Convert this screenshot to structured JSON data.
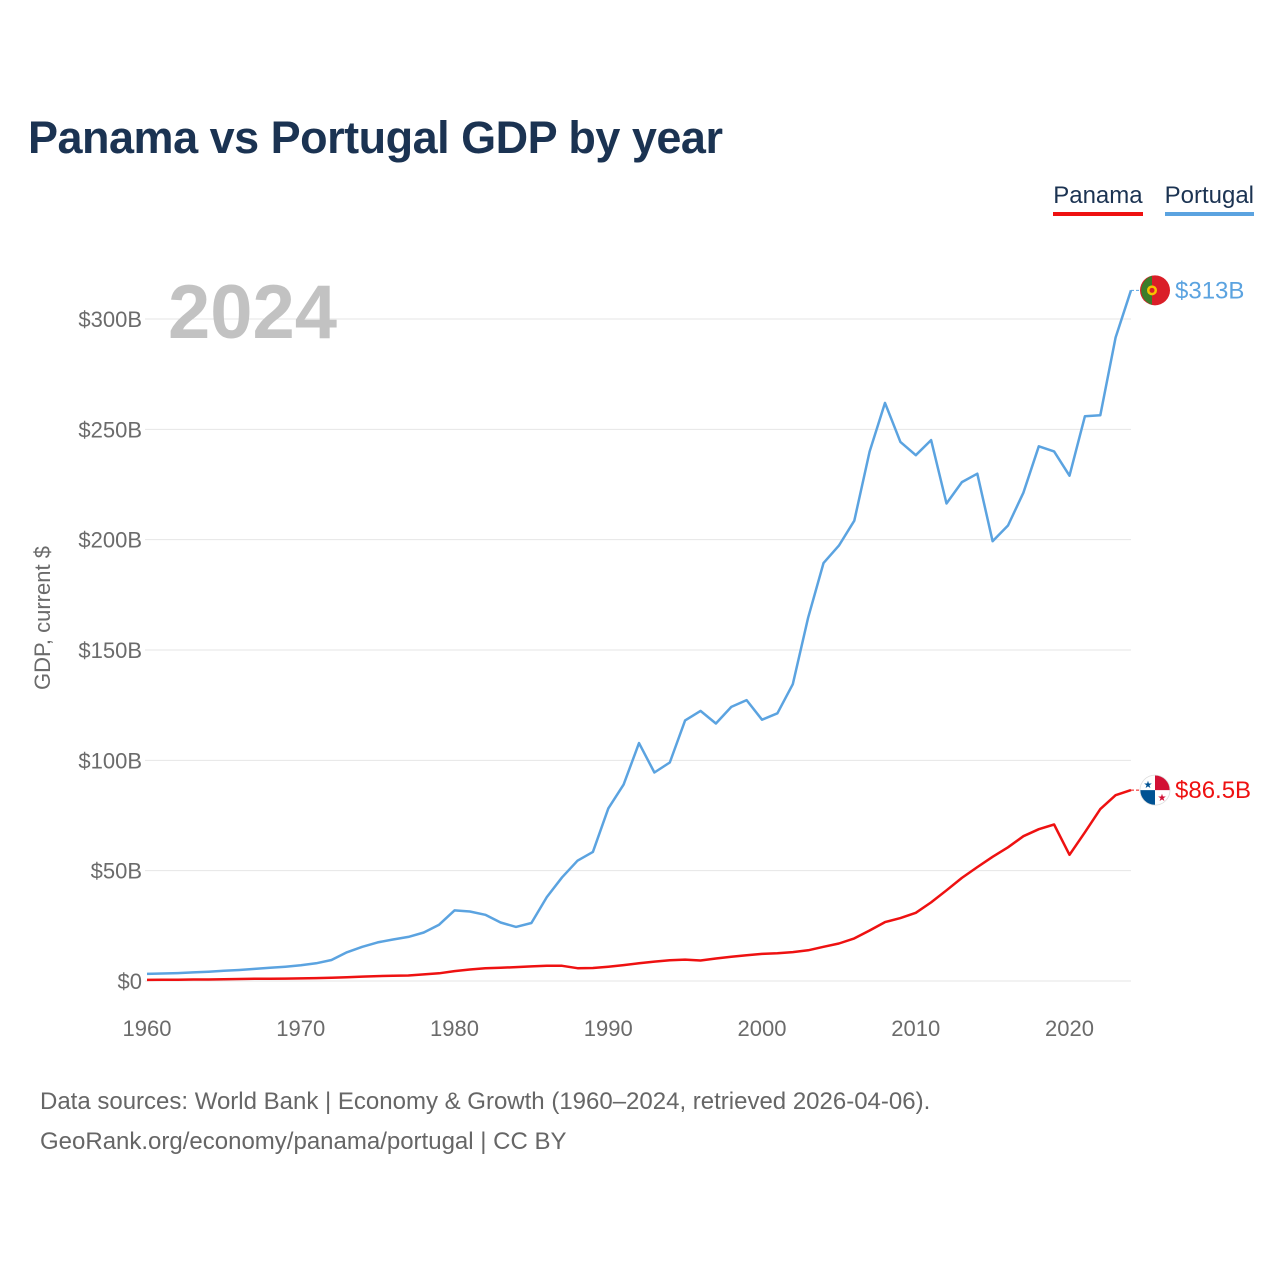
{
  "title": "Panama vs Portugal GDP by year",
  "legend": {
    "panama": "Panama",
    "portugal": "Portugal"
  },
  "colors": {
    "panama": "#ee1111",
    "portugal": "#5ba3e0",
    "title": "#1b3352"
  },
  "footer": {
    "line1": "Data sources: World Bank | Economy & Growth (1960–2024, retrieved 2026-04-06).",
    "line2": "GeoRank.org/economy/panama/portugal | CC BY"
  },
  "chart_data": {
    "type": "line",
    "title": "Panama vs Portugal GDP by year",
    "xlabel": "",
    "ylabel": "GDP, current $",
    "current_year": "2024",
    "xlim": [
      1960,
      2024
    ],
    "ylim": [
      0,
      320
    ],
    "y_unit": "billions USD",
    "x_ticks": [
      1960,
      1970,
      1980,
      1990,
      2000,
      2010,
      2020
    ],
    "y_ticks": [
      0,
      50,
      100,
      150,
      200,
      250,
      300
    ],
    "y_tick_labels": [
      "$0",
      "$50B",
      "$100B",
      "$150B",
      "$200B",
      "$250B",
      "$300B"
    ],
    "grid": true,
    "legend_position": "top-right",
    "x": [
      1960,
      1961,
      1962,
      1963,
      1964,
      1965,
      1966,
      1967,
      1968,
      1969,
      1970,
      1971,
      1972,
      1973,
      1974,
      1975,
      1976,
      1977,
      1978,
      1979,
      1980,
      1981,
      1982,
      1983,
      1984,
      1985,
      1986,
      1987,
      1988,
      1989,
      1990,
      1991,
      1992,
      1993,
      1994,
      1995,
      1996,
      1997,
      1998,
      1999,
      2000,
      2001,
      2002,
      2003,
      2004,
      2005,
      2006,
      2007,
      2008,
      2009,
      2010,
      2011,
      2012,
      2013,
      2014,
      2015,
      2016,
      2017,
      2018,
      2019,
      2020,
      2021,
      2022,
      2023,
      2024
    ],
    "series": [
      {
        "name": "Panama",
        "end_label": "$86.5B",
        "values": [
          0.5,
          0.6,
          0.6,
          0.7,
          0.7,
          0.8,
          0.9,
          1.0,
          1.0,
          1.1,
          1.2,
          1.3,
          1.5,
          1.7,
          2.0,
          2.2,
          2.4,
          2.5,
          3.0,
          3.5,
          4.5,
          5.2,
          5.8,
          6.0,
          6.3,
          6.6,
          6.9,
          6.9,
          5.8,
          5.9,
          6.5,
          7.2,
          8.0,
          8.8,
          9.4,
          9.7,
          9.3,
          10.2,
          11.0,
          11.7,
          12.3,
          12.6,
          13.1,
          13.9,
          15.5,
          17.0,
          19.3,
          22.9,
          26.7,
          28.5,
          30.9,
          35.6,
          41.1,
          46.7,
          51.6,
          56.3,
          60.6,
          65.6,
          68.8,
          70.9,
          57.2,
          67.4,
          77.9,
          84.2,
          86.5
        ]
      },
      {
        "name": "Portugal",
        "end_label": "$313B",
        "values": [
          3.2,
          3.4,
          3.6,
          3.9,
          4.2,
          4.6,
          5.0,
          5.5,
          6.0,
          6.5,
          7.1,
          8.0,
          9.5,
          13.0,
          15.5,
          17.5,
          18.8,
          20.0,
          22.0,
          25.5,
          32.0,
          31.5,
          30.0,
          26.5,
          24.5,
          26.3,
          38.0,
          47.0,
          54.5,
          58.5,
          78.2,
          89.0,
          107.8,
          94.5,
          99.0,
          118.1,
          122.4,
          116.7,
          124.2,
          127.3,
          118.4,
          121.3,
          134.5,
          164.6,
          189.4,
          197.3,
          208.6,
          239.9,
          262.0,
          244.3,
          238.3,
          245.1,
          216.4,
          226.1,
          229.9,
          199.3,
          206.4,
          221.3,
          242.3,
          240.0,
          229.0,
          255.9,
          256.4,
          291.6,
          313.0
        ]
      }
    ]
  }
}
